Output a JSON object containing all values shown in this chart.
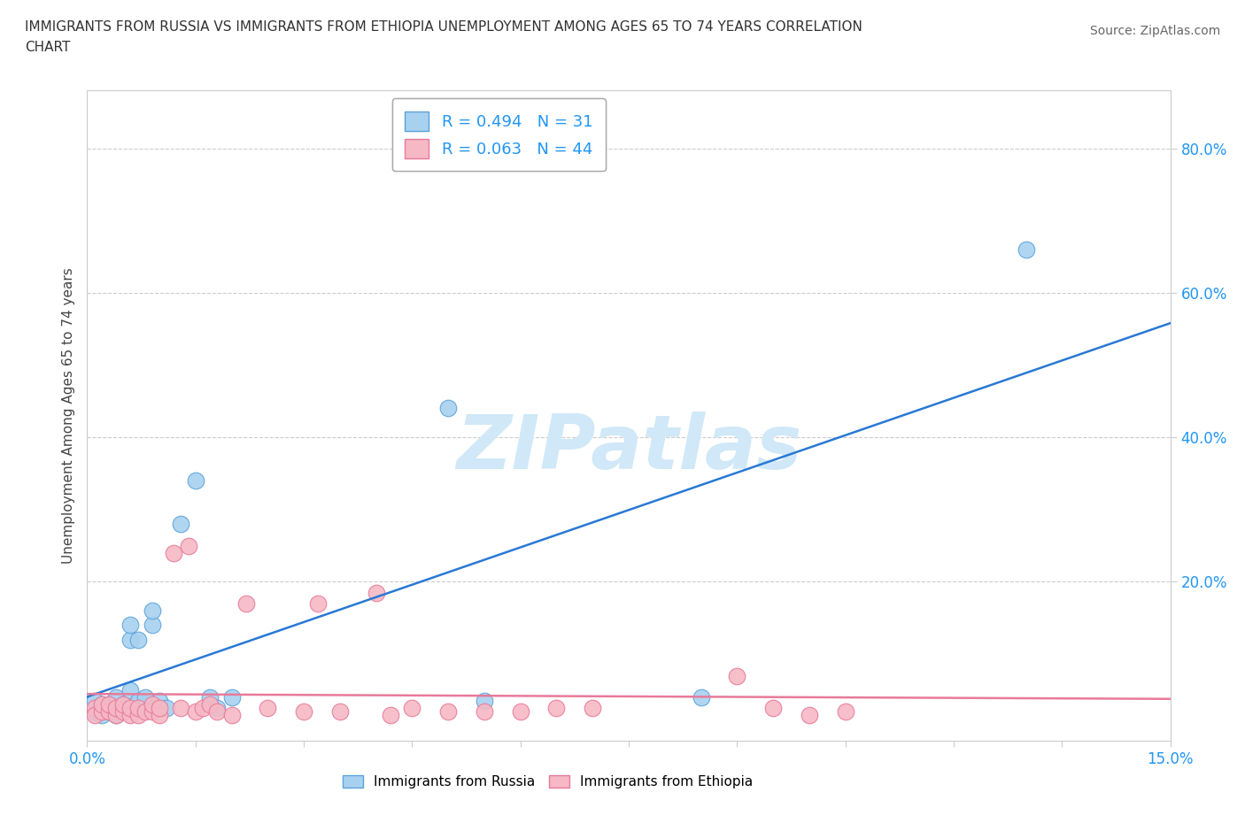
{
  "title_line1": "IMMIGRANTS FROM RUSSIA VS IMMIGRANTS FROM ETHIOPIA UNEMPLOYMENT AMONG AGES 65 TO 74 YEARS CORRELATION",
  "title_line2": "CHART",
  "source_text": "Source: ZipAtlas.com",
  "ylabel": "Unemployment Among Ages 65 to 74 years",
  "xlim": [
    0.0,
    0.15
  ],
  "ylim": [
    -0.02,
    0.88
  ],
  "xticks": [
    0.0,
    0.015,
    0.03,
    0.045,
    0.06,
    0.075,
    0.09,
    0.105,
    0.12,
    0.135,
    0.15
  ],
  "xticklabels": [
    "0.0%",
    "",
    "",
    "",
    "",
    "",
    "",
    "",
    "",
    "",
    "15.0%"
  ],
  "ytick_positions": [
    0.2,
    0.4,
    0.6,
    0.8
  ],
  "yticklabels": [
    "20.0%",
    "40.0%",
    "60.0%",
    "80.0%"
  ],
  "russia_color": "#a8d1f0",
  "russia_edge_color": "#5ba3d9",
  "ethiopia_color": "#f5b8c4",
  "ethiopia_edge_color": "#e87a9a",
  "trend_russia_color": "#2979d4",
  "trend_ethiopia_color": "#e87a9a",
  "R_russia": 0.494,
  "N_russia": 31,
  "R_ethiopia": 0.063,
  "N_ethiopia": 44,
  "watermark": "ZIPatlas",
  "watermark_color": "#d0e8f8",
  "legend_russia_label": "Immigrants from Russia",
  "legend_ethiopia_label": "Immigrants from Ethiopia",
  "russia_x": [
    0.001,
    0.001,
    0.002,
    0.002,
    0.003,
    0.003,
    0.004,
    0.004,
    0.005,
    0.005,
    0.006,
    0.006,
    0.006,
    0.007,
    0.007,
    0.007,
    0.008,
    0.008,
    0.009,
    0.009,
    0.01,
    0.011,
    0.013,
    0.015,
    0.017,
    0.018,
    0.02,
    0.05,
    0.055,
    0.085,
    0.13
  ],
  "russia_y": [
    0.02,
    0.035,
    0.015,
    0.03,
    0.02,
    0.03,
    0.015,
    0.04,
    0.025,
    0.03,
    0.05,
    0.12,
    0.14,
    0.025,
    0.035,
    0.12,
    0.03,
    0.04,
    0.14,
    0.16,
    0.035,
    0.025,
    0.28,
    0.34,
    0.04,
    0.025,
    0.04,
    0.44,
    0.035,
    0.04,
    0.66
  ],
  "ethiopia_x": [
    0.001,
    0.001,
    0.002,
    0.002,
    0.003,
    0.003,
    0.004,
    0.004,
    0.005,
    0.005,
    0.006,
    0.006,
    0.007,
    0.007,
    0.008,
    0.009,
    0.009,
    0.01,
    0.01,
    0.012,
    0.013,
    0.014,
    0.015,
    0.016,
    0.017,
    0.018,
    0.02,
    0.022,
    0.025,
    0.03,
    0.032,
    0.035,
    0.04,
    0.042,
    0.045,
    0.05,
    0.055,
    0.06,
    0.065,
    0.07,
    0.09,
    0.095,
    0.1,
    0.105
  ],
  "ethiopia_y": [
    0.025,
    0.015,
    0.02,
    0.03,
    0.02,
    0.03,
    0.015,
    0.025,
    0.02,
    0.03,
    0.015,
    0.025,
    0.015,
    0.025,
    0.02,
    0.02,
    0.03,
    0.015,
    0.025,
    0.24,
    0.025,
    0.25,
    0.02,
    0.025,
    0.03,
    0.02,
    0.015,
    0.17,
    0.025,
    0.02,
    0.17,
    0.02,
    0.185,
    0.015,
    0.025,
    0.02,
    0.02,
    0.02,
    0.025,
    0.025,
    0.07,
    0.025,
    0.015,
    0.02
  ],
  "background_color": "#ffffff",
  "plot_bg_color": "#ffffff",
  "grid_color": "#cccccc",
  "axis_color": "#cccccc"
}
